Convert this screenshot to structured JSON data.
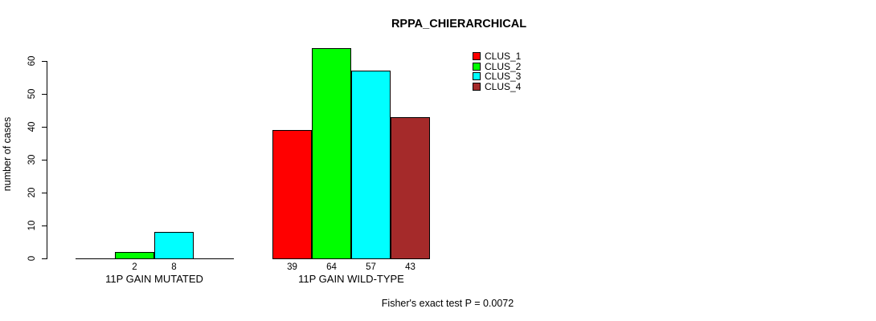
{
  "chart_data": {
    "type": "bar",
    "title": "RPPA_CHIERARCHICAL",
    "ylabel": "number of cases",
    "ylim": [
      0,
      64
    ],
    "yticks": [
      0,
      10,
      20,
      30,
      40,
      50,
      60
    ],
    "grid": false,
    "legend_position": "top-right",
    "axis_color": "#000000",
    "legend": [
      {
        "label": "CLUS_1",
        "color": "#ff0000"
      },
      {
        "label": "CLUS_2",
        "color": "#00ff00"
      },
      {
        "label": "CLUS_3",
        "color": "#00ffff"
      },
      {
        "label": "CLUS_4",
        "color": "#a52a2a"
      }
    ],
    "categories": [
      "11P GAIN MUTATED",
      "11P GAIN WILD-TYPE"
    ],
    "series": [
      {
        "name": "CLUS_1",
        "values": [
          0,
          39
        ]
      },
      {
        "name": "CLUS_2",
        "values": [
          2,
          64
        ]
      },
      {
        "name": "CLUS_3",
        "values": [
          8,
          57
        ]
      },
      {
        "name": "CLUS_4",
        "values": [
          0,
          43
        ]
      }
    ],
    "footnote": "Fisher's exact test P = 0.0072"
  }
}
